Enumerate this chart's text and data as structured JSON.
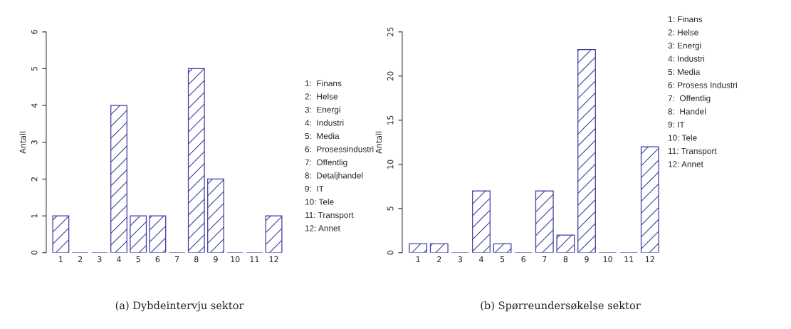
{
  "chart_data": [
    {
      "type": "bar",
      "title": "(a) Dybdeintervju sektor",
      "ylabel": "Antall",
      "categories": [
        "1",
        "2",
        "3",
        "4",
        "5",
        "6",
        "7",
        "8",
        "9",
        "10",
        "11",
        "12"
      ],
      "values": [
        1,
        0,
        0,
        4,
        1,
        1,
        0,
        5,
        2,
        0,
        0,
        1
      ],
      "color": "#3c3ca0",
      "ylim": [
        0,
        6
      ],
      "yticks": [
        0,
        1,
        2,
        3,
        4,
        5,
        6
      ],
      "grid": false,
      "annotations": [
        "1:  Finans",
        "2:  Helse",
        "3:  Energi",
        "4:  Industri",
        "5:  Media",
        "6:  Prosessindustri",
        "7:  Offentlig",
        "8:  Detaljhandel",
        "9:  IT",
        "10: Tele",
        "11: Transport",
        "12: Annet"
      ]
    },
    {
      "type": "bar",
      "title": "(b) Spørreundersøkelse sektor",
      "ylabel": "Antall",
      "categories": [
        "1",
        "2",
        "3",
        "4",
        "5",
        "6",
        "7",
        "8",
        "9",
        "10",
        "11",
        "12"
      ],
      "values": [
        1,
        1,
        0,
        7,
        1,
        0,
        7,
        2,
        23,
        0,
        0,
        12
      ],
      "color": "#3c3ca0",
      "ylim": [
        0,
        25
      ],
      "yticks": [
        0,
        5,
        10,
        15,
        20,
        25
      ],
      "grid": false,
      "annotations": [
        "1: Finans",
        "2: Helse",
        "3: Energi",
        "4: Industri",
        "5: Media",
        "6: Prosess Industri",
        "7:  Offentlig",
        "8:  Handel",
        "9: IT",
        "10: Tele",
        "11: Transport",
        "12: Annet"
      ]
    }
  ]
}
